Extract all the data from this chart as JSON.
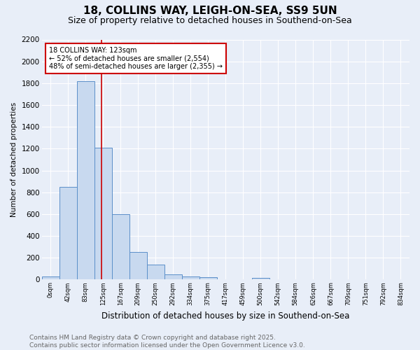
{
  "title": "18, COLLINS WAY, LEIGH-ON-SEA, SS9 5UN",
  "subtitle": "Size of property relative to detached houses in Southend-on-Sea",
  "xlabel": "Distribution of detached houses by size in Southend-on-Sea",
  "ylabel": "Number of detached properties",
  "categories": [
    "0sqm",
    "42sqm",
    "83sqm",
    "125sqm",
    "167sqm",
    "209sqm",
    "250sqm",
    "292sqm",
    "334sqm",
    "375sqm",
    "417sqm",
    "459sqm",
    "500sqm",
    "542sqm",
    "584sqm",
    "626sqm",
    "667sqm",
    "709sqm",
    "751sqm",
    "792sqm",
    "834sqm"
  ],
  "bar_values": [
    25,
    850,
    1820,
    1210,
    600,
    255,
    135,
    50,
    30,
    20,
    0,
    0,
    15,
    0,
    0,
    0,
    0,
    0,
    0,
    0,
    0
  ],
  "bar_color": "#c8d9ef",
  "bar_edge_color": "#5b8fc9",
  "property_line_x": 2.92,
  "annotation_line1": "18 COLLINS WAY: 123sqm",
  "annotation_line2": "← 52% of detached houses are smaller (2,554)",
  "annotation_line3": "48% of semi-detached houses are larger (2,355) →",
  "annotation_box_color": "#ffffff",
  "annotation_box_edge": "#cc0000",
  "vline_color": "#cc0000",
  "ylim": [
    0,
    2200
  ],
  "yticks": [
    0,
    200,
    400,
    600,
    800,
    1000,
    1200,
    1400,
    1600,
    1800,
    2000,
    2200
  ],
  "footer_line1": "Contains HM Land Registry data © Crown copyright and database right 2025.",
  "footer_line2": "Contains public sector information licensed under the Open Government Licence v3.0.",
  "bg_color": "#e8eef8",
  "grid_color": "#ffffff",
  "title_fontsize": 11,
  "subtitle_fontsize": 9,
  "annotation_fontsize": 7,
  "footer_fontsize": 6.5,
  "ylabel_fontsize": 7.5,
  "xlabel_fontsize": 8.5
}
